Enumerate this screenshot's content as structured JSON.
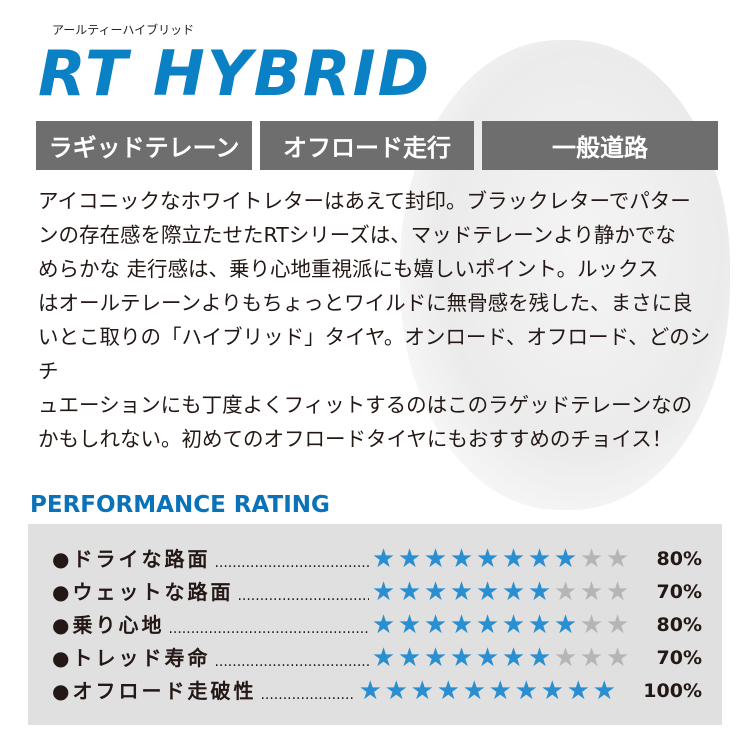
{
  "header": {
    "kana": "アールティーハイブリッド",
    "logo": "RT HYBRID"
  },
  "tags": [
    "ラギッドテレーン",
    "オフロード走行",
    "一般道路"
  ],
  "body_lines": [
    "アイコニックなホワイトレターはあえて封印。ブラックレターでパター",
    "ンの存在感を際立たせたRTシリーズは、マッドテレーンより静かでな",
    "めらかな 走行感は、乗り心地重視派にも嬉しいポイント。ルックス",
    "はオールテレーンよりもちょっとワイルドに無骨感を残した、まさに良",
    "いとこ取りの「ハイブリッド」タイヤ。オンロード、オフロード、どのシチ",
    "ュエーションにも丁度よくフィットするのはこのラゲッドテレーンなの",
    "かもしれない。初めてのオフロードタイヤにもおすすめのチョイス！"
  ],
  "performance": {
    "title": "PERFORMANCE RATING",
    "max_stars": 10,
    "colors": {
      "filled": "#2a8fd0",
      "empty": "#b5b5b5"
    },
    "rows": [
      {
        "label": "●ドライな路面",
        "stars": 8,
        "percent": "80%"
      },
      {
        "label": "●ウェットな路面",
        "stars": 7,
        "percent": "70%"
      },
      {
        "label": "●乗り心地",
        "stars": 8,
        "percent": "80%"
      },
      {
        "label": "●トレッド寿命",
        "stars": 7,
        "percent": "70%"
      },
      {
        "label": "●オフロード走破性",
        "stars": 10,
        "percent": "100%"
      }
    ]
  }
}
